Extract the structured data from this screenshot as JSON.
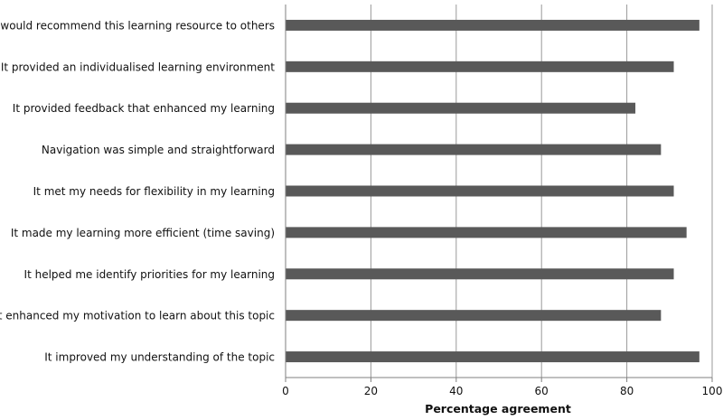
{
  "chart_data": {
    "type": "bar",
    "orientation": "horizontal",
    "categories": [
      "I would recommend this learning resource to others",
      "It provided an individualised learning environment",
      "It provided feedback that enhanced my learning",
      "Navigation was simple and straightforward",
      "It met my needs for flexibility in my learning",
      "It made my learning more efficient (time saving)",
      "It helped me identify priorities for my learning",
      "It enhanced my motivation to learn about this topic",
      "It improved my understanding of the topic"
    ],
    "values": [
      97,
      91,
      82,
      88,
      91,
      94,
      91,
      88,
      97
    ],
    "xlabel": "Percentage agreement",
    "ylabel": "",
    "xlim": [
      0,
      100
    ],
    "xticks": [
      "0",
      "20",
      "40",
      "60",
      "80",
      "100"
    ],
    "grid": true,
    "bar_color": "#595959",
    "grid_color": "#9a9a9a"
  }
}
